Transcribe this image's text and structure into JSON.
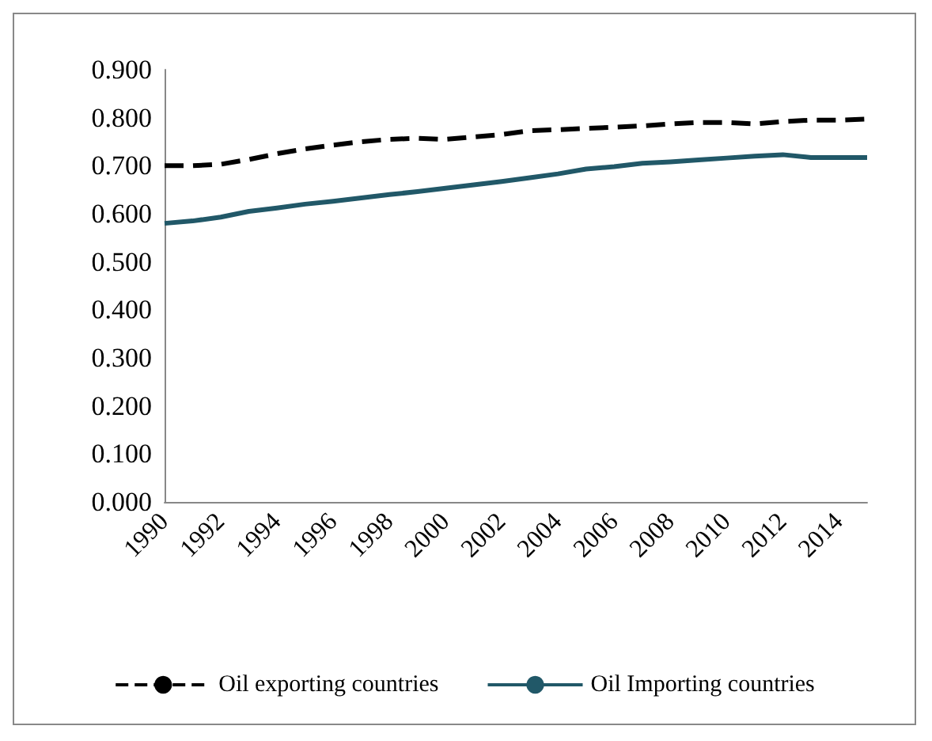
{
  "chart_data": {
    "type": "line",
    "categories": [
      "1990",
      null,
      "1992",
      null,
      "1994",
      null,
      "1996",
      null,
      "1998",
      null,
      "2000",
      null,
      "2002",
      null,
      "2004",
      null,
      "2006",
      null,
      "2008",
      null,
      "2010",
      null,
      "2012",
      null,
      "2014",
      null
    ],
    "series": [
      {
        "name": "Oil exporting countries",
        "color": "#000000",
        "line_style": "dashed",
        "values": [
          0.7,
          0.7,
          0.703,
          0.713,
          0.725,
          0.735,
          0.743,
          0.75,
          0.755,
          0.757,
          0.755,
          0.76,
          0.765,
          0.773,
          0.775,
          0.778,
          0.78,
          0.783,
          0.787,
          0.79,
          0.79,
          0.787,
          0.792,
          0.795,
          0.795,
          0.797
        ]
      },
      {
        "name": "Oil Importing countries",
        "color": "#215868",
        "line_style": "solid",
        "values": [
          0.58,
          0.585,
          0.593,
          0.605,
          0.612,
          0.62,
          0.626,
          0.633,
          0.64,
          0.646,
          0.653,
          0.66,
          0.667,
          0.675,
          0.683,
          0.693,
          0.698,
          0.705,
          0.708,
          0.712,
          0.716,
          0.72,
          0.723,
          0.717,
          0.717,
          0.717
        ]
      }
    ],
    "ylim": [
      0,
      0.9
    ],
    "yticks": [
      {
        "value": 0,
        "label": "0.000"
      },
      {
        "value": 0.1,
        "label": "0.100"
      },
      {
        "value": 0.2,
        "label": "0.200"
      },
      {
        "value": 0.3,
        "label": "0.300"
      },
      {
        "value": 0.4,
        "label": "0.400"
      },
      {
        "value": 0.5,
        "label": "0.500"
      },
      {
        "value": 0.6,
        "label": "0.600"
      },
      {
        "value": 0.7,
        "label": "0.700"
      },
      {
        "value": 0.8,
        "label": "0.800"
      },
      {
        "value": 0.9,
        "label": "0.900"
      }
    ],
    "grid": false,
    "legend": "bottom",
    "marker": "none"
  }
}
